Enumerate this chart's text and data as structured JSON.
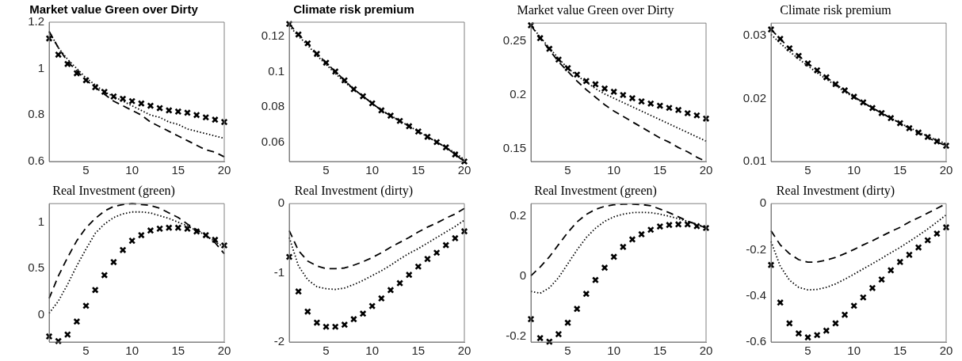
{
  "chart_data": [
    {
      "type": "line",
      "title": "Market value Green over Dirty",
      "x": [
        1,
        2,
        3,
        4,
        5,
        6,
        7,
        8,
        9,
        10,
        11,
        12,
        13,
        14,
        15,
        16,
        17,
        18,
        19,
        20
      ],
      "xlim": [
        1,
        20
      ],
      "xticks": [
        5,
        10,
        15,
        20
      ],
      "ylim": [
        0.6,
        1.2
      ],
      "yticks": [
        0.6,
        0.8,
        1,
        1.2
      ],
      "grid": false,
      "legend": false,
      "series": [
        {
          "type": "line",
          "line_style": "dashed",
          "marker": "none",
          "color": "#000000",
          "values": [
            1.16,
            1.09,
            1.03,
            0.99,
            0.95,
            0.92,
            0.89,
            0.86,
            0.84,
            0.82,
            0.8,
            0.77,
            0.75,
            0.73,
            0.71,
            0.69,
            0.67,
            0.65,
            0.64,
            0.62
          ]
        },
        {
          "type": "line",
          "line_style": "dotted",
          "marker": "none",
          "color": "#000000",
          "values": [
            1.16,
            1.09,
            1.04,
            1.0,
            0.96,
            0.93,
            0.9,
            0.88,
            0.86,
            0.84,
            0.82,
            0.8,
            0.79,
            0.77,
            0.76,
            0.74,
            0.73,
            0.72,
            0.71,
            0.7
          ]
        },
        {
          "type": "scatter",
          "marker": "cross",
          "color": "#000000",
          "values": [
            1.13,
            1.06,
            1.02,
            0.98,
            0.95,
            0.92,
            0.9,
            0.88,
            0.87,
            0.86,
            0.85,
            0.84,
            0.83,
            0.82,
            0.815,
            0.81,
            0.8,
            0.79,
            0.78,
            0.77
          ]
        }
      ]
    },
    {
      "type": "line",
      "title": "Climate risk premium",
      "x": [
        1,
        2,
        3,
        4,
        5,
        6,
        7,
        8,
        9,
        10,
        11,
        12,
        13,
        14,
        15,
        16,
        17,
        18,
        19,
        20
      ],
      "xlim": [
        1,
        20
      ],
      "xticks": [
        5,
        10,
        15,
        20
      ],
      "ylim": [
        0.049,
        0.128
      ],
      "yticks": [
        0.06,
        0.08,
        0.1,
        0.12
      ],
      "grid": false,
      "legend": false,
      "series": [
        {
          "type": "line",
          "line_style": "dashed",
          "marker": "none",
          "color": "#000000",
          "values": [
            0.127,
            0.121,
            0.116,
            0.11,
            0.105,
            0.1,
            0.095,
            0.09,
            0.086,
            0.082,
            0.078,
            0.075,
            0.072,
            0.069,
            0.066,
            0.063,
            0.06,
            0.057,
            0.053,
            0.049
          ]
        },
        {
          "type": "line",
          "line_style": "dotted",
          "marker": "none",
          "color": "#000000",
          "values": [
            0.126,
            0.12,
            0.115,
            0.109,
            0.104,
            0.099,
            0.094,
            0.09,
            0.086,
            0.082,
            0.078,
            0.075,
            0.072,
            0.069,
            0.066,
            0.063,
            0.06,
            0.057,
            0.054,
            0.05
          ]
        },
        {
          "type": "scatter",
          "marker": "cross",
          "color": "#000000",
          "values": [
            0.127,
            0.121,
            0.116,
            0.11,
            0.105,
            0.1,
            0.095,
            0.09,
            0.086,
            0.082,
            0.078,
            0.075,
            0.072,
            0.069,
            0.066,
            0.063,
            0.06,
            0.057,
            0.053,
            0.049
          ]
        }
      ]
    },
    {
      "type": "line",
      "title": "Market value Green over Dirty",
      "x": [
        1,
        2,
        3,
        4,
        5,
        6,
        7,
        8,
        9,
        10,
        11,
        12,
        13,
        14,
        15,
        16,
        17,
        18,
        19,
        20
      ],
      "xlim": [
        1,
        20
      ],
      "xticks": [
        5,
        10,
        15,
        20
      ],
      "ylim": [
        0.138,
        0.267
      ],
      "yticks": [
        0.15,
        0.2,
        0.25
      ],
      "grid": false,
      "legend": false,
      "series": [
        {
          "type": "line",
          "line_style": "dashed",
          "marker": "none",
          "color": "#000000",
          "values": [
            0.265,
            0.253,
            0.242,
            0.231,
            0.222,
            0.213,
            0.205,
            0.198,
            0.191,
            0.185,
            0.18,
            0.175,
            0.17,
            0.165,
            0.16,
            0.156,
            0.151,
            0.147,
            0.142,
            0.138
          ]
        },
        {
          "type": "line",
          "line_style": "dotted",
          "marker": "none",
          "color": "#000000",
          "values": [
            0.265,
            0.254,
            0.244,
            0.234,
            0.225,
            0.218,
            0.212,
            0.206,
            0.201,
            0.197,
            0.193,
            0.189,
            0.185,
            0.181,
            0.177,
            0.173,
            0.169,
            0.165,
            0.161,
            0.157
          ]
        },
        {
          "type": "scatter",
          "marker": "cross",
          "color": "#000000",
          "values": [
            0.265,
            0.253,
            0.243,
            0.233,
            0.225,
            0.219,
            0.213,
            0.21,
            0.206,
            0.203,
            0.2,
            0.197,
            0.194,
            0.192,
            0.19,
            0.188,
            0.186,
            0.183,
            0.181,
            0.178
          ]
        }
      ]
    },
    {
      "type": "line",
      "title": "Climate risk premium",
      "x": [
        1,
        2,
        3,
        4,
        5,
        6,
        7,
        8,
        9,
        10,
        11,
        12,
        13,
        14,
        15,
        16,
        17,
        18,
        19,
        20
      ],
      "xlim": [
        1,
        20
      ],
      "xticks": [
        5,
        10,
        15,
        20
      ],
      "ylim": [
        0.01,
        0.032
      ],
      "yticks": [
        0.01,
        0.02,
        0.03
      ],
      "grid": false,
      "legend": false,
      "series": [
        {
          "type": "line",
          "line_style": "dashed",
          "marker": "none",
          "color": "#000000",
          "values": [
            0.031,
            0.0295,
            0.028,
            0.0268,
            0.0256,
            0.0245,
            0.0234,
            0.0223,
            0.0213,
            0.0203,
            0.0194,
            0.0185,
            0.0177,
            0.0169,
            0.0161,
            0.0153,
            0.0145,
            0.0138,
            0.0131,
            0.0125
          ]
        },
        {
          "type": "line",
          "line_style": "dotted",
          "marker": "none",
          "color": "#000000",
          "values": [
            0.0302,
            0.0288,
            0.0275,
            0.0263,
            0.0252,
            0.0241,
            0.0231,
            0.0221,
            0.0211,
            0.0202,
            0.0193,
            0.0185,
            0.0177,
            0.0169,
            0.0161,
            0.0154,
            0.0147,
            0.014,
            0.0134,
            0.0128
          ]
        },
        {
          "type": "scatter",
          "marker": "cross",
          "color": "#000000",
          "values": [
            0.031,
            0.0295,
            0.028,
            0.0268,
            0.0256,
            0.0245,
            0.0234,
            0.0223,
            0.0213,
            0.0203,
            0.0194,
            0.0185,
            0.0177,
            0.0169,
            0.0161,
            0.0153,
            0.0146,
            0.0139,
            0.0132,
            0.0125
          ]
        }
      ]
    },
    {
      "type": "line",
      "title": "Real Investment (green)",
      "x": [
        1,
        2,
        3,
        4,
        5,
        6,
        7,
        8,
        9,
        10,
        11,
        12,
        13,
        14,
        15,
        16,
        17,
        18,
        19,
        20
      ],
      "xlim": [
        1,
        20
      ],
      "xticks": [
        5,
        10,
        15,
        20
      ],
      "ylim": [
        -0.29,
        1.2
      ],
      "yticks": [
        0,
        0.5,
        1
      ],
      "grid": false,
      "legend": false,
      "series": [
        {
          "type": "line",
          "line_style": "dashed",
          "marker": "none",
          "color": "#000000",
          "values": [
            0.18,
            0.42,
            0.62,
            0.8,
            0.94,
            1.04,
            1.12,
            1.17,
            1.19,
            1.2,
            1.19,
            1.18,
            1.15,
            1.1,
            1.05,
            0.98,
            0.92,
            0.86,
            0.78,
            0.66
          ]
        },
        {
          "type": "line",
          "line_style": "dotted",
          "marker": "none",
          "color": "#000000",
          "values": [
            0.02,
            0.15,
            0.33,
            0.53,
            0.71,
            0.88,
            0.98,
            1.05,
            1.09,
            1.11,
            1.11,
            1.1,
            1.07,
            1.04,
            1.0,
            0.96,
            0.91,
            0.86,
            0.79,
            0.73
          ]
        },
        {
          "type": "scatter",
          "marker": "cross",
          "color": "#000000",
          "values": [
            -0.23,
            -0.28,
            -0.21,
            -0.07,
            0.1,
            0.27,
            0.43,
            0.57,
            0.7,
            0.8,
            0.86,
            0.91,
            0.93,
            0.94,
            0.94,
            0.93,
            0.9,
            0.86,
            0.81,
            0.75
          ]
        }
      ]
    },
    {
      "type": "line",
      "title": "Real Investment (dirty)",
      "x": [
        1,
        2,
        3,
        4,
        5,
        6,
        7,
        8,
        9,
        10,
        11,
        12,
        13,
        14,
        15,
        16,
        17,
        18,
        19,
        20
      ],
      "xlim": [
        1,
        20
      ],
      "xticks": [
        5,
        10,
        15,
        20
      ],
      "ylim": [
        -2,
        0
      ],
      "yticks": [
        -2,
        -1,
        0
      ],
      "grid": false,
      "legend": false,
      "series": [
        {
          "type": "line",
          "line_style": "dashed",
          "marker": "none",
          "color": "#000000",
          "values": [
            -0.39,
            -0.68,
            -0.83,
            -0.9,
            -0.94,
            -0.94,
            -0.93,
            -0.89,
            -0.84,
            -0.78,
            -0.71,
            -0.63,
            -0.56,
            -0.49,
            -0.41,
            -0.34,
            -0.28,
            -0.21,
            -0.15,
            -0.07
          ]
        },
        {
          "type": "line",
          "line_style": "dotted",
          "marker": "none",
          "color": "#000000",
          "values": [
            -0.49,
            -0.9,
            -1.1,
            -1.2,
            -1.23,
            -1.24,
            -1.22,
            -1.17,
            -1.11,
            -1.04,
            -0.97,
            -0.89,
            -0.8,
            -0.72,
            -0.65,
            -0.57,
            -0.49,
            -0.41,
            -0.33,
            -0.24
          ]
        },
        {
          "type": "scatter",
          "marker": "cross",
          "color": "#000000",
          "values": [
            -0.77,
            -1.27,
            -1.56,
            -1.72,
            -1.78,
            -1.78,
            -1.75,
            -1.67,
            -1.59,
            -1.48,
            -1.37,
            -1.25,
            -1.15,
            -1.03,
            -0.91,
            -0.8,
            -0.71,
            -0.6,
            -0.5,
            -0.4
          ]
        }
      ]
    },
    {
      "type": "line",
      "title": "Real Investment (green)",
      "x": [
        1,
        2,
        3,
        4,
        5,
        6,
        7,
        8,
        9,
        10,
        11,
        12,
        13,
        14,
        15,
        16,
        17,
        18,
        19,
        20
      ],
      "xlim": [
        1,
        20
      ],
      "xticks": [
        5,
        10,
        15,
        20
      ],
      "ylim": [
        -0.22,
        0.24
      ],
      "yticks": [
        -0.2,
        0,
        0.2
      ],
      "grid": false,
      "legend": false,
      "series": [
        {
          "type": "line",
          "line_style": "dashed",
          "marker": "none",
          "color": "#000000",
          "values": [
            0,
            0.029,
            0.063,
            0.104,
            0.144,
            0.179,
            0.204,
            0.221,
            0.231,
            0.236,
            0.238,
            0.238,
            0.237,
            0.233,
            0.222,
            0.21,
            0.196,
            0.182,
            0.171,
            0.159
          ]
        },
        {
          "type": "line",
          "line_style": "dotted",
          "marker": "none",
          "color": "#000000",
          "values": [
            -0.052,
            -0.058,
            -0.04,
            -0.006,
            0.04,
            0.086,
            0.127,
            0.158,
            0.181,
            0.196,
            0.205,
            0.21,
            0.211,
            0.21,
            0.205,
            0.198,
            0.19,
            0.181,
            0.171,
            0.159
          ]
        },
        {
          "type": "scatter",
          "marker": "cross",
          "color": "#000000",
          "values": [
            -0.144,
            -0.207,
            -0.219,
            -0.194,
            -0.156,
            -0.11,
            -0.06,
            -0.014,
            0.027,
            0.063,
            0.096,
            0.121,
            0.138,
            0.153,
            0.164,
            0.169,
            0.171,
            0.171,
            0.165,
            0.159
          ]
        }
      ]
    },
    {
      "type": "line",
      "title": "Real Investment (dirty)",
      "x": [
        1,
        2,
        3,
        4,
        5,
        6,
        7,
        8,
        9,
        10,
        11,
        12,
        13,
        14,
        15,
        16,
        17,
        18,
        19,
        20
      ],
      "xlim": [
        1,
        20
      ],
      "xticks": [
        5,
        10,
        15,
        20
      ],
      "ylim": [
        -0.6,
        0
      ],
      "yticks": [
        -0.6,
        -0.4,
        -0.2,
        0
      ],
      "grid": false,
      "legend": false,
      "series": [
        {
          "type": "line",
          "line_style": "dashed",
          "marker": "none",
          "color": "#000000",
          "values": [
            -0.118,
            -0.179,
            -0.217,
            -0.243,
            -0.254,
            -0.253,
            -0.245,
            -0.233,
            -0.217,
            -0.199,
            -0.179,
            -0.161,
            -0.141,
            -0.121,
            -0.103,
            -0.08,
            -0.061,
            -0.041,
            -0.021,
            0
          ]
        },
        {
          "type": "line",
          "line_style": "dotted",
          "marker": "none",
          "color": "#000000",
          "values": [
            -0.164,
            -0.271,
            -0.332,
            -0.363,
            -0.374,
            -0.372,
            -0.363,
            -0.348,
            -0.328,
            -0.306,
            -0.283,
            -0.26,
            -0.237,
            -0.213,
            -0.19,
            -0.164,
            -0.138,
            -0.11,
            -0.08,
            -0.049
          ]
        },
        {
          "type": "scatter",
          "marker": "cross",
          "color": "#000000",
          "values": [
            -0.266,
            -0.429,
            -0.519,
            -0.563,
            -0.58,
            -0.57,
            -0.551,
            -0.519,
            -0.482,
            -0.443,
            -0.407,
            -0.366,
            -0.329,
            -0.289,
            -0.253,
            -0.222,
            -0.19,
            -0.159,
            -0.13,
            -0.103
          ]
        }
      ]
    }
  ]
}
